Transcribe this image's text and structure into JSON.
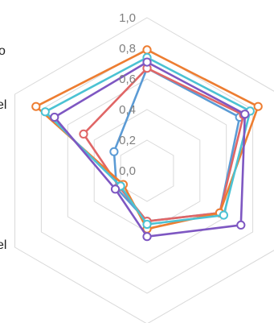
{
  "chart_data": {
    "type": "radar",
    "axes_count": 6,
    "r_ticks": [
      "0,0",
      "0,2",
      "0,4",
      "0,6",
      "0,8",
      "1,0"
    ],
    "r_min": 0.0,
    "r_max": 1.0,
    "grid": true,
    "edge_fragments": [
      "o",
      "el",
      "el"
    ],
    "series": [
      {
        "color": "#5B9BD5",
        "values": [
          0.67,
          0.7,
          0.55,
          0.33,
          0.23,
          0.25
        ]
      },
      {
        "color": "#E06666",
        "values": [
          0.67,
          0.73,
          0.55,
          0.33,
          0.21,
          0.48
        ]
      },
      {
        "color": "#ED7D31",
        "values": [
          0.79,
          0.84,
          0.55,
          0.38,
          0.18,
          0.84
        ]
      },
      {
        "color": "#4BC2D3",
        "values": [
          0.74,
          0.78,
          0.58,
          0.35,
          0.2,
          0.77
        ]
      },
      {
        "color": "#7E57C2",
        "values": [
          0.71,
          0.74,
          0.71,
          0.43,
          0.24,
          0.7
        ]
      }
    ]
  }
}
